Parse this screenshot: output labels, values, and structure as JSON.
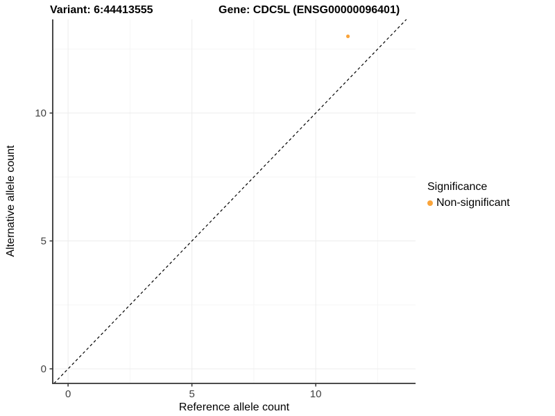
{
  "titles": {
    "variant": "Variant: 6:44413555",
    "gene": "Gene: CDC5L (ENSG00000096401)"
  },
  "axes": {
    "x_label": "Reference allele count",
    "y_label": "Alternative allele count"
  },
  "legend": {
    "title": "Significance",
    "items": [
      {
        "label": "Non-significant",
        "color": "#FAA43A"
      }
    ]
  },
  "chart_data": {
    "type": "scatter",
    "title": "Variant: 6:44413555 | Gene: CDC5L (ENSG00000096401)",
    "xlabel": "Reference allele count",
    "ylabel": "Alternative allele count",
    "xlim": [
      -0.62,
      14.03
    ],
    "ylim": [
      -0.57,
      13.66
    ],
    "x_ticks": [
      0,
      5,
      10
    ],
    "y_ticks": [
      0,
      5,
      10
    ],
    "x_minor_ticks": [
      2.5,
      7.5,
      12.5
    ],
    "y_minor_ticks": [
      2.5,
      7.5,
      12.5
    ],
    "grid": "major+minor",
    "legend_position": "right",
    "series": [
      {
        "name": "Non-significant",
        "color": "#FAA43A",
        "points": [
          {
            "x": 11.3,
            "y": 13
          }
        ]
      }
    ],
    "reference_line": {
      "kind": "identity",
      "slope": 1,
      "intercept": 0,
      "style": "dashed",
      "color": "#000000"
    },
    "colors": {
      "point": "#FAA43A",
      "axis_line": "#333333",
      "grid_major": "#ECECEC",
      "grid_minor": "#F5F5F5",
      "tick_text": "#404040",
      "reference_line": "#000000"
    }
  }
}
